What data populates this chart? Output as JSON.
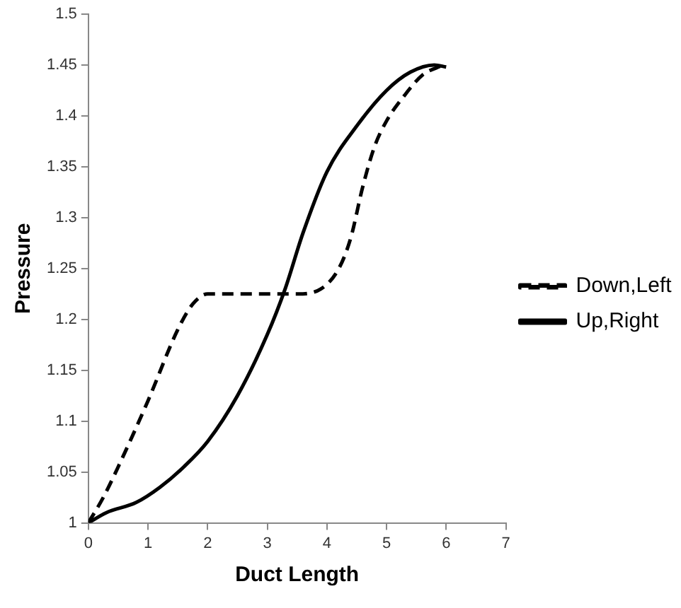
{
  "chart_data": {
    "type": "line",
    "xlabel": "Duct Length",
    "ylabel": "Pressure",
    "xlim": [
      0,
      7
    ],
    "xticks": [
      0,
      1,
      2,
      3,
      4,
      5,
      6,
      7
    ],
    "ylim": [
      1,
      1.5
    ],
    "yticks": [
      1,
      1.05,
      1.1,
      1.15,
      1.2,
      1.25,
      1.3,
      1.35,
      1.4,
      1.45,
      1.5
    ],
    "grid": false,
    "legend": "right",
    "marker": "none",
    "series": [
      {
        "name": "Down,Left",
        "color": "#000000",
        "line_style": "dashed",
        "x": [
          0,
          0.25,
          0.5,
          1,
          1.5,
          1.75,
          2,
          2.5,
          3,
          3.5,
          3.9,
          4.2,
          4.4,
          4.6,
          4.8,
          5,
          5.3,
          5.6,
          5.95
        ],
        "values": [
          1,
          1.025,
          1.055,
          1.12,
          1.19,
          1.215,
          1.225,
          1.225,
          1.225,
          1.225,
          1.23,
          1.25,
          1.28,
          1.33,
          1.37,
          1.395,
          1.42,
          1.44,
          1.45
        ]
      },
      {
        "name": "Up,Right",
        "color": "#000000",
        "line_style": "solid",
        "x": [
          0,
          0.3,
          0.8,
          1.2,
          1.6,
          2,
          2.5,
          3,
          3.3,
          3.6,
          4,
          4.5,
          5,
          5.4,
          5.8,
          6
        ],
        "values": [
          1,
          1.01,
          1.02,
          1.035,
          1.055,
          1.08,
          1.125,
          1.185,
          1.23,
          1.285,
          1.345,
          1.39,
          1.425,
          1.443,
          1.45,
          1.448
        ]
      }
    ]
  }
}
